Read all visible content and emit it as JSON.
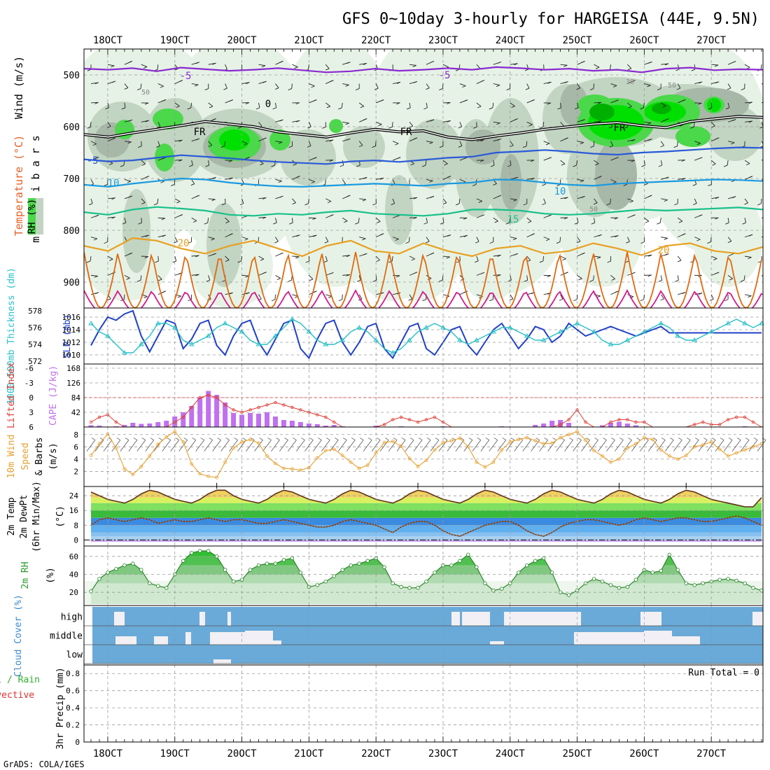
{
  "title": "GFS 0~10day 3-hourly for HARGEISA (44E, 9.5N)",
  "footer": "GrADS: COLA/IGES",
  "dates": [
    "18OCT",
    "19OCT",
    "20OCT",
    "21OCT",
    "22OCT",
    "23OCT",
    "24OCT",
    "25OCT",
    "26OCT",
    "27OCT"
  ],
  "colors": {
    "frame": "#000000",
    "grid": "#9a9a9a",
    "rh_light": "#e6f2e6",
    "rh_mid": "#c2d4c2",
    "rh_gray": "#a8b8a8",
    "rh_green": "#4bd84b",
    "rh_bright": "#00e000",
    "rh_dark": "#00b000",
    "t_m5": "#8a2ad0",
    "t_0": "#000000",
    "t_5": "#2a5ad8",
    "t_10": "#1b9ae0",
    "t_15": "#18c08a",
    "t_20": "#e8a020",
    "t_25": "#e06a10",
    "t_30": "#d01a8a",
    "slp": "#2040c8",
    "thick": "#28c0c8",
    "cape": "#c070f0",
    "li": "#e03a30",
    "wind": "#e8a030",
    "cloud": "#6aaad8",
    "cloud_gap": "#f2f0f4"
  },
  "chart_data": [
    {
      "panel": "upper_air",
      "type": "heatmap",
      "ylabels": [
        "Wind (m/s)",
        "Temperature (°C)",
        "RH (%)",
        "m i l l i b a r s"
      ],
      "yticks": [
        500,
        600,
        700,
        800,
        900
      ],
      "ylim": [
        1000,
        450
      ],
      "isotherms": [
        {
          "label": "-5",
          "values_hpa": [
            488,
            490,
            487,
            493,
            486,
            489,
            492,
            490,
            487,
            491,
            495,
            493,
            488,
            492,
            490,
            487,
            490,
            485,
            487,
            490,
            488,
            492,
            490,
            495,
            488,
            486,
            491,
            489,
            490
          ]
        },
        {
          "label": "FR",
          "values_hpa": [
            615,
            620,
            612,
            605,
            598,
            590,
            595,
            600,
            610,
            615,
            620,
            612,
            605,
            610,
            608,
            620,
            625,
            618,
            612,
            605,
            600,
            595,
            592,
            598,
            602,
            590,
            585,
            580,
            582
          ]
        },
        {
          "label": "-5",
          "values_hpa": [
            663,
            667,
            665,
            660,
            655,
            658,
            661,
            665,
            668,
            670,
            672,
            667,
            665,
            668,
            664,
            660,
            658,
            650,
            648,
            645,
            648,
            652,
            654,
            650,
            648,
            645,
            642,
            640,
            641
          ]
        },
        {
          "label": "10",
          "values_hpa": [
            712,
            716,
            710,
            705,
            700,
            702,
            708,
            712,
            715,
            716,
            714,
            712,
            710,
            712,
            714,
            710,
            708,
            702,
            703,
            708,
            712,
            714,
            710,
            708,
            706,
            704,
            702,
            703,
            705
          ]
        },
        {
          "label": "15",
          "values_hpa": [
            765,
            770,
            760,
            755,
            758,
            762,
            770,
            772,
            768,
            770,
            765,
            762,
            768,
            770,
            772,
            768,
            760,
            760,
            762,
            768,
            770,
            768,
            764,
            760,
            762,
            760,
            758,
            756,
            760
          ]
        },
        {
          "label": "20",
          "values_hpa": [
            830,
            840,
            815,
            820,
            835,
            845,
            830,
            820,
            835,
            850,
            830,
            820,
            840,
            845,
            825,
            840,
            850,
            835,
            830,
            845,
            840,
            825,
            835,
            848,
            830,
            825,
            840,
            845,
            832
          ]
        }
      ],
      "rh_contours": [
        30,
        50
      ]
    },
    {
      "panel": "slp_thickness",
      "type": "line",
      "ylabel_left": "1000-500mb Thickness (dm)",
      "ylabel_right": "SLP (mb)",
      "yticks_left": [
        572,
        574,
        576,
        578
      ],
      "yticks_right": [
        1010,
        1012,
        1014,
        1016
      ],
      "series": [
        {
          "name": "SLP",
          "values": [
            1011.5,
            1014,
            1016,
            1015.5,
            1016.5,
            1017,
            1013,
            1010.5,
            1013,
            1015.5,
            1015,
            1011,
            1012.5,
            1015,
            1015.5,
            1011.5,
            1010,
            1013,
            1015,
            1015.5,
            1012,
            1010,
            1012.5,
            1015,
            1015.5,
            1011,
            1009.5,
            1012.5,
            1015,
            1015.5,
            1012,
            1010,
            1012,
            1014.5,
            1015,
            1011,
            1009.5,
            1012,
            1014.5,
            1015,
            1011,
            1010,
            1012,
            1014,
            1014.5,
            1011.5,
            1010,
            1012,
            1014,
            1015,
            1013,
            1011,
            1012.5,
            1014.5,
            1014,
            1012,
            1013,
            1015,
            1014,
            1013,
            1013.5,
            1014,
            1014.5,
            1014,
            1013.5,
            1013,
            1013.5,
            1014,
            1014.5,
            1013.5,
            1013.5,
            1013.5,
            1013.5,
            1013.5,
            1013.5,
            1013.5,
            1013.5,
            1013.5,
            1013.5,
            1013.5,
            1013.5
          ]
        },
        {
          "name": "Thickness",
          "values": [
            576.5,
            575.5,
            575,
            574,
            573,
            573,
            574,
            575,
            576.5,
            576.5,
            576,
            574.5,
            574,
            574.5,
            575,
            576,
            576.5,
            576,
            575.5,
            574.5,
            574,
            574,
            575,
            576,
            577,
            576.5,
            575.5,
            574.5,
            574,
            574,
            574.5,
            575.5,
            576,
            575.5,
            574.5,
            573.5,
            573,
            573.5,
            574.5,
            575.5,
            576,
            576.5,
            576,
            575.5,
            574.5,
            574,
            574.5,
            575,
            575.5,
            576,
            576,
            575.5,
            575,
            574.5,
            574.5,
            575,
            575.5,
            576,
            576.5,
            576,
            575.5,
            574.5,
            574,
            574,
            574.5,
            575,
            575.5,
            576,
            576.5,
            576,
            575,
            574.5,
            574.5,
            575,
            575.5,
            576,
            576.5,
            577,
            576.5,
            576,
            576.5
          ]
        }
      ]
    },
    {
      "panel": "cape_li",
      "type": "bar",
      "ylabel_left": "Lifted Index",
      "ylabel_right": "CAPE (J/kg)",
      "yticks_left": [
        "-6",
        "-3",
        "0",
        "3",
        "6"
      ],
      "yticks_right": [
        42,
        84,
        126,
        168
      ],
      "cape": [
        5,
        4,
        0,
        2,
        6,
        12,
        9,
        10,
        14,
        18,
        30,
        42,
        60,
        85,
        103,
        92,
        70,
        40,
        35,
        40,
        38,
        42,
        30,
        20,
        18,
        14,
        10,
        8,
        4,
        6,
        2,
        1,
        0,
        0,
        4,
        0,
        0,
        2,
        0,
        1,
        0,
        0,
        2,
        0,
        0,
        0,
        0,
        0,
        0,
        2,
        0,
        0,
        0,
        6,
        10,
        18,
        20,
        12,
        0,
        0,
        0,
        5,
        12,
        15,
        10,
        5,
        0,
        0,
        0,
        0,
        0,
        0,
        0,
        0,
        0,
        0,
        0,
        0,
        2,
        0,
        0
      ],
      "li": [
        5,
        4,
        3.5,
        5,
        6,
        6,
        6,
        6,
        6,
        6,
        5,
        4,
        2,
        0,
        -0.5,
        0,
        1.5,
        2.5,
        3,
        2.5,
        2,
        1.5,
        1,
        1.5,
        2,
        2.5,
        3,
        3.5,
        4,
        5,
        6,
        6,
        6,
        6,
        6,
        5.5,
        4.5,
        4,
        4.5,
        5,
        4.5,
        4,
        5,
        6,
        6,
        6,
        6,
        6,
        6,
        6,
        6,
        6,
        6,
        6,
        6,
        6,
        5.5,
        4.5,
        2.5,
        5,
        6,
        6,
        5,
        4.5,
        4.5,
        5,
        5,
        6,
        6,
        6,
        6,
        6,
        5.5,
        5,
        5.5,
        5.5,
        4.5,
        4,
        4,
        5,
        6
      ]
    },
    {
      "panel": "wind10m",
      "type": "line",
      "ylabel": "10m Wind Speed & Barbs (m/s)",
      "yticks": [
        2,
        4,
        6,
        8
      ],
      "values": [
        4.6,
        6.5,
        8.1,
        5.8,
        2.4,
        1.5,
        2.8,
        4.5,
        6.4,
        7.6,
        8.5,
        6.8,
        3.2,
        1.6,
        1.2,
        1.0,
        3.5,
        5.8,
        6.8,
        7.2,
        6.6,
        4.5,
        3.3,
        2.5,
        2.4,
        2.2,
        2.6,
        4.2,
        5.4,
        5.6,
        4.6,
        3.5,
        2.5,
        3.0,
        5.0,
        6.7,
        6.9,
        6.1,
        4.1,
        2.8,
        3.8,
        5.5,
        6.7,
        7.0,
        7.4,
        6.0,
        3.5,
        2.7,
        3.5,
        5.5,
        6.8,
        7.2,
        7.5,
        7.0,
        6.5,
        6.6,
        7.5,
        8.0,
        8.5,
        7.1,
        5.4,
        4.5,
        3.5,
        4.0,
        5.8,
        6.5,
        7.5,
        7.2,
        5.5,
        4.5,
        4.0,
        4.6,
        6.0,
        6.3,
        6.8,
        5.6,
        4.5,
        5.0,
        5.5,
        6.0,
        6.5
      ]
    },
    {
      "panel": "temp2m",
      "type": "area",
      "ylabel": "2m Temp 2m DewPt (6hr Min/Max) (°C)",
      "yticks": [
        0,
        8,
        16,
        24
      ],
      "temp": [
        26,
        24,
        22,
        21,
        20,
        22,
        25,
        27,
        26,
        24,
        22,
        21,
        20,
        22,
        25,
        27,
        27,
        24,
        22,
        21,
        20,
        22,
        25,
        27,
        26,
        24,
        22,
        21,
        20,
        22,
        25,
        27,
        26,
        24,
        22,
        21,
        20,
        22,
        25,
        27,
        26,
        24,
        22,
        21,
        20,
        22,
        25,
        27,
        26,
        24,
        22,
        21,
        20,
        22,
        25,
        27,
        26,
        24,
        22,
        21,
        20,
        22,
        25,
        27,
        26,
        24,
        22,
        21,
        20,
        22,
        25,
        27,
        26,
        24,
        22,
        21,
        20,
        19,
        18,
        18,
        23
      ],
      "dewpt": [
        8,
        11,
        12,
        11,
        10,
        11,
        12,
        11,
        9,
        10,
        11,
        10,
        10,
        11,
        12,
        11,
        10,
        11,
        11,
        10,
        9,
        9,
        10,
        11,
        10,
        9,
        8,
        7,
        7,
        8,
        10,
        11,
        10,
        9,
        8,
        6,
        4,
        7,
        9,
        10,
        10,
        8,
        5,
        3,
        2,
        4,
        6,
        8,
        9,
        10,
        10,
        8,
        5,
        3,
        2,
        4,
        7,
        9,
        10,
        11,
        11,
        10,
        9,
        8,
        9,
        11,
        12,
        11,
        10,
        11,
        12,
        12,
        11,
        10,
        10,
        11,
        12,
        13,
        12,
        10,
        8
      ]
    },
    {
      "panel": "rh2m",
      "type": "area",
      "ylabel": "2m RH (%)",
      "yticks": [
        20,
        40,
        60
      ],
      "values": [
        21,
        35,
        42,
        46,
        50,
        52,
        45,
        30,
        27,
        25,
        40,
        55,
        64,
        66,
        66,
        60,
        45,
        32,
        34,
        45,
        50,
        52,
        52,
        56,
        58,
        42,
        26,
        28,
        32,
        38,
        45,
        50,
        52,
        55,
        58,
        48,
        30,
        26,
        25,
        25,
        32,
        42,
        50,
        50,
        55,
        62,
        48,
        30,
        22,
        24,
        30,
        42,
        50,
        55,
        58,
        42,
        20,
        17,
        22,
        30,
        35,
        32,
        28,
        25,
        26,
        34,
        45,
        42,
        44,
        62,
        45,
        30,
        28,
        30,
        32,
        34,
        35,
        33,
        30,
        25,
        22
      ]
    },
    {
      "panel": "cloud",
      "type": "heatmap",
      "ylabel": "Cloud Cover (%)",
      "levels": [
        "high",
        "middle",
        "low"
      ]
    },
    {
      "panel": "precip",
      "type": "bar",
      "ylabel": "3hr Precip (mm)",
      "legend": [
        "Total / Rain",
        "Convective"
      ],
      "yticks": [
        "0",
        "0.2",
        "0.4",
        "0.6",
        "0.8"
      ],
      "run_total_label": "Run Total = 0",
      "values": []
    }
  ]
}
